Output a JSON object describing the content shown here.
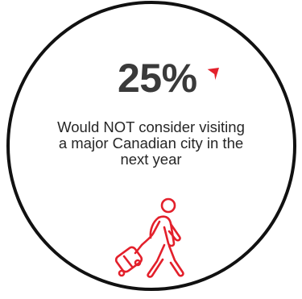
{
  "stat": {
    "value": "25%"
  },
  "statement": {
    "text": "Would NOT consider visiting a major Canadian city in the next year"
  },
  "icons": {
    "indicator": "down-arrow-icon",
    "traveler": "traveler-with-suitcase-icon"
  },
  "colors": {
    "accent": "#e3202b",
    "ring": "#111111",
    "text": "#3a3a3a"
  }
}
